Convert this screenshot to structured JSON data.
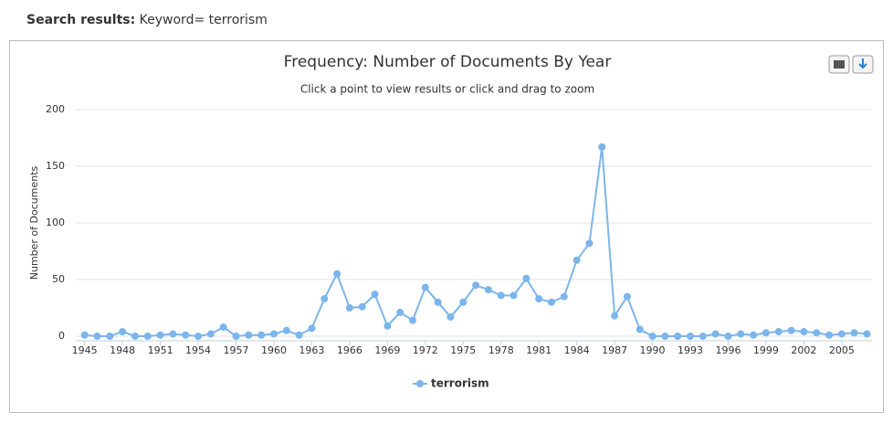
{
  "header": {
    "label": "Search results:",
    "query": "Keyword= terrorism"
  },
  "chart_data": {
    "type": "line",
    "title": "Frequency: Number of Documents By Year",
    "subtitle": "Click a point to view results or click and drag to zoom",
    "y_label": "Number of Documents",
    "x": [
      1945,
      1946,
      1947,
      1948,
      1949,
      1950,
      1951,
      1952,
      1953,
      1954,
      1955,
      1956,
      1957,
      1958,
      1959,
      1960,
      1961,
      1962,
      1963,
      1964,
      1965,
      1966,
      1967,
      1968,
      1969,
      1970,
      1971,
      1972,
      1973,
      1974,
      1975,
      1976,
      1977,
      1978,
      1979,
      1980,
      1981,
      1982,
      1983,
      1984,
      1985,
      1986,
      1987,
      1988,
      1989,
      1990,
      1991,
      1992,
      1993,
      1994,
      1995,
      1996,
      1997,
      1998,
      1999,
      2000,
      2001,
      2002,
      2003,
      2004,
      2005,
      2006,
      2007
    ],
    "series": [
      {
        "name": "terrorism",
        "color": "#7cb5ec",
        "values": [
          1,
          0,
          0,
          4,
          0,
          0,
          1,
          2,
          1,
          0,
          2,
          8,
          0,
          1,
          1,
          2,
          5,
          1,
          7,
          33,
          55,
          25,
          26,
          37,
          9,
          21,
          14,
          43,
          30,
          17,
          30,
          45,
          41,
          36,
          36,
          51,
          33,
          30,
          35,
          67,
          82,
          167,
          18,
          35,
          6,
          0,
          0,
          0,
          0,
          0,
          2,
          0,
          2,
          1,
          3,
          4,
          5,
          4,
          3,
          1,
          2,
          3,
          2
        ]
      }
    ],
    "xlim": [
      1944.3,
      2007.4
    ],
    "xticks": [
      1945,
      1948,
      1951,
      1954,
      1957,
      1960,
      1963,
      1966,
      1969,
      1972,
      1975,
      1978,
      1981,
      1984,
      1987,
      1990,
      1993,
      1996,
      1999,
      2002,
      2005
    ],
    "ylim": [
      0,
      200
    ],
    "yticks": [
      0,
      50,
      100,
      150,
      200
    ],
    "grid": true,
    "legend": "bottom"
  }
}
